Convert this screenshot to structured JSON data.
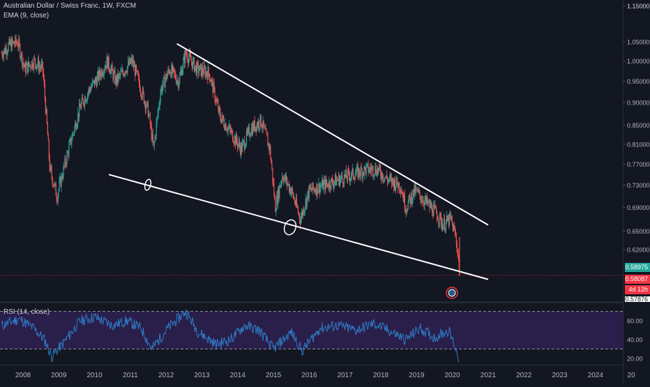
{
  "header": {
    "symbol_line": "Australian Dollar / Swiss Franc, 1W, FXCM",
    "indicator_line": "EMA (9, close)"
  },
  "rsi": {
    "label": "RSI (14, close)",
    "ticks": [
      "60.00",
      "40.00",
      "20.00"
    ]
  },
  "price_axis": {
    "ticks": [
      "1.15000",
      "1.05000",
      "1.00000",
      "0.95000",
      "0.90000",
      "0.85000",
      "0.81000",
      "0.77000",
      "0.73000",
      "0.69000",
      "0.65000",
      "0.62000"
    ],
    "last_price": "0.58975",
    "current_price": "0.58087",
    "countdown": "4d 12h",
    "bottom_partial": "0.57876"
  },
  "time_axis": {
    "ticks": [
      "2008",
      "2009",
      "2010",
      "2011",
      "2012",
      "2013",
      "2014",
      "2015",
      "2016",
      "2017",
      "2018",
      "2019",
      "2020",
      "2021",
      "2022",
      "2023",
      "2024",
      "20"
    ]
  },
  "colors": {
    "background": "#131722",
    "up": "#26a69a",
    "down": "#ef5350",
    "trendline": "#ffffff",
    "rsi_line": "#2e7dc6",
    "rsi_band": "#2a1e4a",
    "current_price": "#f23645"
  },
  "chart_data": [
    {
      "type": "candlestick",
      "title": "Australian Dollar / Swiss Franc, 1W, FXCM",
      "x_range": [
        2007.5,
        2025.0
      ],
      "y_scale": "log",
      "y_ticks": [
        0.62,
        0.65,
        0.69,
        0.73,
        0.77,
        0.81,
        0.85,
        0.9,
        0.95,
        1.0,
        1.05,
        1.15
      ],
      "close_path": [
        {
          "x": 2007.4,
          "y": 1.02
        },
        {
          "x": 2007.6,
          "y": 1.04
        },
        {
          "x": 2007.85,
          "y": 1.05
        },
        {
          "x": 2008.05,
          "y": 0.98
        },
        {
          "x": 2008.3,
          "y": 1.0
        },
        {
          "x": 2008.55,
          "y": 0.98
        },
        {
          "x": 2008.75,
          "y": 0.76
        },
        {
          "x": 2008.95,
          "y": 0.71
        },
        {
          "x": 2009.1,
          "y": 0.75
        },
        {
          "x": 2009.35,
          "y": 0.82
        },
        {
          "x": 2009.6,
          "y": 0.89
        },
        {
          "x": 2009.85,
          "y": 0.93
        },
        {
          "x": 2010.1,
          "y": 0.96
        },
        {
          "x": 2010.35,
          "y": 1.0
        },
        {
          "x": 2010.6,
          "y": 0.95
        },
        {
          "x": 2010.85,
          "y": 0.98
        },
        {
          "x": 2011.05,
          "y": 1.0
        },
        {
          "x": 2011.3,
          "y": 0.93
        },
        {
          "x": 2011.5,
          "y": 0.88
        },
        {
          "x": 2011.65,
          "y": 0.8
        },
        {
          "x": 2011.85,
          "y": 0.93
        },
        {
          "x": 2012.1,
          "y": 0.98
        },
        {
          "x": 2012.35,
          "y": 0.95
        },
        {
          "x": 2012.55,
          "y": 1.02
        },
        {
          "x": 2012.85,
          "y": 0.98
        },
        {
          "x": 2013.2,
          "y": 0.97
        },
        {
          "x": 2013.5,
          "y": 0.87
        },
        {
          "x": 2013.85,
          "y": 0.83
        },
        {
          "x": 2014.1,
          "y": 0.8
        },
        {
          "x": 2014.35,
          "y": 0.84
        },
        {
          "x": 2014.65,
          "y": 0.86
        },
        {
          "x": 2014.9,
          "y": 0.8
        },
        {
          "x": 2015.05,
          "y": 0.69
        },
        {
          "x": 2015.25,
          "y": 0.75
        },
        {
          "x": 2015.5,
          "y": 0.72
        },
        {
          "x": 2015.75,
          "y": 0.67
        },
        {
          "x": 2016.0,
          "y": 0.72
        },
        {
          "x": 2016.4,
          "y": 0.73
        },
        {
          "x": 2016.8,
          "y": 0.74
        },
        {
          "x": 2017.2,
          "y": 0.75
        },
        {
          "x": 2017.6,
          "y": 0.76
        },
        {
          "x": 2017.9,
          "y": 0.76
        },
        {
          "x": 2018.2,
          "y": 0.74
        },
        {
          "x": 2018.55,
          "y": 0.73
        },
        {
          "x": 2018.7,
          "y": 0.69
        },
        {
          "x": 2018.95,
          "y": 0.72
        },
        {
          "x": 2019.25,
          "y": 0.7
        },
        {
          "x": 2019.55,
          "y": 0.68
        },
        {
          "x": 2019.75,
          "y": 0.66
        },
        {
          "x": 2019.95,
          "y": 0.67
        },
        {
          "x": 2020.1,
          "y": 0.64
        },
        {
          "x": 2020.18,
          "y": 0.6
        },
        {
          "x": 2020.2,
          "y": 0.58087
        }
      ],
      "trendlines": [
        {
          "from": {
            "x": 2012.3,
            "y": 1.045
          },
          "to": {
            "x": 2021.0,
            "y": 0.66
          }
        },
        {
          "from": {
            "x": 2010.4,
            "y": 0.75
          },
          "to": {
            "x": 2021.0,
            "y": 0.575
          }
        }
      ],
      "current_price": 0.58087,
      "last_close": 0.58975
    },
    {
      "type": "line",
      "title": "RSI (14, close)",
      "y_ticks": [
        20,
        40,
        60
      ],
      "y_range": [
        15,
        72
      ],
      "bands": [
        30,
        70
      ],
      "series": [
        {
          "name": "RSI (14, close)",
          "x": [
            2007.4,
            2007.9,
            2008.3,
            2008.6,
            2008.8,
            2009.1,
            2009.6,
            2010.0,
            2010.5,
            2010.9,
            2011.3,
            2011.6,
            2012.0,
            2012.55,
            2012.9,
            2013.4,
            2013.8,
            2014.2,
            2014.6,
            2015.0,
            2015.5,
            2015.8,
            2016.3,
            2016.8,
            2017.3,
            2017.8,
            2018.2,
            2018.7,
            2019.1,
            2019.5,
            2019.9,
            2020.1,
            2020.2
          ],
          "values": [
            55,
            62,
            52,
            40,
            22,
            35,
            60,
            64,
            55,
            60,
            52,
            30,
            50,
            70,
            48,
            35,
            40,
            55,
            50,
            30,
            48,
            28,
            52,
            55,
            50,
            57,
            50,
            40,
            52,
            42,
            50,
            30,
            18
          ]
        }
      ]
    }
  ]
}
